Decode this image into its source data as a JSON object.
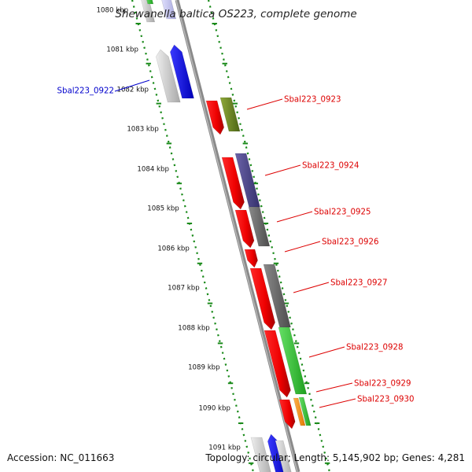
{
  "title": "Shewanella baltica OS223, complete genome",
  "footer": {
    "accession": "Accession: NC_011663",
    "summary": "Topology: circular; Length: 5,145,902 bp; Genes: 4,281"
  },
  "colors": {
    "backbone": "#8a8a8a",
    "dotted_guide": "#1a8a1a",
    "reverse_label": "#0000cc",
    "forward_label": "#dd0000"
  },
  "scale_labels": [
    "1080 kbp",
    "1081 kbp",
    "1082 kbp",
    "1083 kbp",
    "1084 kbp",
    "1085 kbp",
    "1086 kbp",
    "1087 kbp",
    "1088 kbp",
    "1089 kbp",
    "1090 kbp",
    "1091 kbp"
  ],
  "gene_labels": [
    {
      "text": "Sbal223_0922",
      "side": "left",
      "color": "#0000cc"
    },
    {
      "text": "Sbal223_0923",
      "side": "right",
      "color": "#dd0000"
    },
    {
      "text": "Sbal223_0924",
      "side": "right",
      "color": "#dd0000"
    },
    {
      "text": "Sbal223_0925",
      "side": "right",
      "color": "#dd0000"
    },
    {
      "text": "Sbal223_0926",
      "side": "right",
      "color": "#dd0000"
    },
    {
      "text": "Sbal223_0927",
      "side": "right",
      "color": "#dd0000"
    },
    {
      "text": "Sbal223_0928",
      "side": "right",
      "color": "#dd0000"
    },
    {
      "text": "Sbal223_0929",
      "side": "right",
      "color": "#dd0000"
    },
    {
      "text": "Sbal223_0930",
      "side": "right",
      "color": "#dd0000"
    }
  ]
}
